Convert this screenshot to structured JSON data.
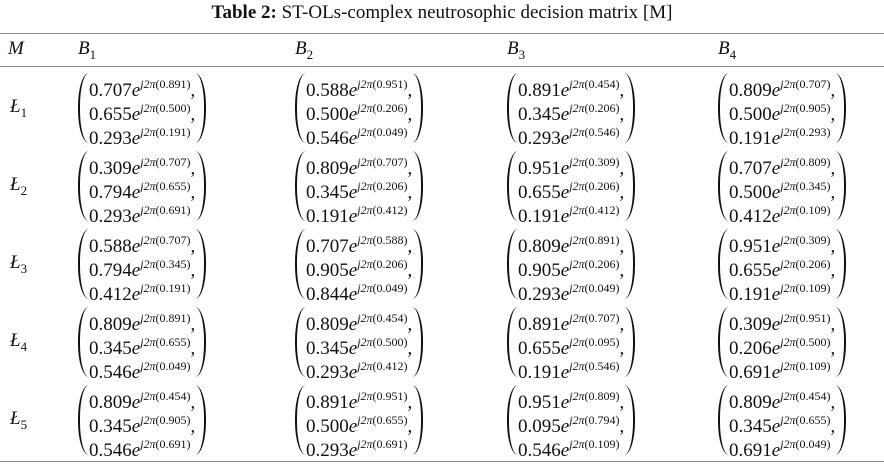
{
  "caption": {
    "label": "Table 2:",
    "text": "ST-OLs-complex neutrosophic decision matrix [M]"
  },
  "notation": {
    "base": "e",
    "exp_prefix": "j2π",
    "separator": ","
  },
  "header": [
    {
      "base": "M"
    },
    {
      "base": "B",
      "sub": "1"
    },
    {
      "base": "B",
      "sub": "2"
    },
    {
      "base": "B",
      "sub": "3"
    },
    {
      "base": "B",
      "sub": "4"
    }
  ],
  "rows": [
    {
      "label": {
        "base": "Ł",
        "sub": "1"
      },
      "cells": [
        [
          [
            "0.707",
            "(0.891)"
          ],
          [
            "0.655",
            "(0.500)"
          ],
          [
            "0.293",
            "(0.191)"
          ]
        ],
        [
          [
            "0.588",
            "(0.951)"
          ],
          [
            "0.500",
            "(0.206)"
          ],
          [
            "0.546",
            "(0.049)"
          ]
        ],
        [
          [
            "0.891",
            "(0.454)"
          ],
          [
            "0.345",
            "(0.206)"
          ],
          [
            "0.293",
            "(0.546)"
          ]
        ],
        [
          [
            "0.809",
            "(0.707)"
          ],
          [
            "0.500",
            "(0.905)"
          ],
          [
            "0.191",
            "(0.293)"
          ]
        ]
      ]
    },
    {
      "label": {
        "base": "Ł",
        "sub": "2"
      },
      "cells": [
        [
          [
            "0.309",
            "(0.707)"
          ],
          [
            "0.794",
            "(0.655)"
          ],
          [
            "0.293",
            "(0.691)"
          ]
        ],
        [
          [
            "0.809",
            "(0.707)"
          ],
          [
            "0.345",
            "(0.206)"
          ],
          [
            "0.191",
            "(0.412)"
          ]
        ],
        [
          [
            "0.951",
            "(0.309)"
          ],
          [
            "0.655",
            "(0.206)"
          ],
          [
            "0.191",
            "(0.412)"
          ]
        ],
        [
          [
            "0.707",
            "(0.809)"
          ],
          [
            "0.500",
            "(0.345)"
          ],
          [
            "0.412",
            "(0.109)"
          ]
        ]
      ]
    },
    {
      "label": {
        "base": "Ł",
        "sub": "3"
      },
      "cells": [
        [
          [
            "0.588",
            "(0.707)"
          ],
          [
            "0.794",
            "(0.345)"
          ],
          [
            "0.412",
            "(0.191)"
          ]
        ],
        [
          [
            "0.707",
            "(0.588)"
          ],
          [
            "0.905",
            "(0.206)"
          ],
          [
            "0.844",
            "(0.049)"
          ]
        ],
        [
          [
            "0.809",
            "(0.891)"
          ],
          [
            "0.905",
            "(0.206)"
          ],
          [
            "0.293",
            "(0.049)"
          ]
        ],
        [
          [
            "0.951",
            "(0.309)"
          ],
          [
            "0.655",
            "(0.206)"
          ],
          [
            "0.191",
            "(0.109)"
          ]
        ]
      ]
    },
    {
      "label": {
        "base": "Ł",
        "sub": "4"
      },
      "cells": [
        [
          [
            "0.809",
            "(0.891)"
          ],
          [
            "0.345",
            "(0.655)"
          ],
          [
            "0.546",
            "(0.049)"
          ]
        ],
        [
          [
            "0.809",
            "(0.454)"
          ],
          [
            "0.345",
            "(0.500)"
          ],
          [
            "0.293",
            "(0.412)"
          ]
        ],
        [
          [
            "0.891",
            "(0.707)"
          ],
          [
            "0.655",
            "(0.095)"
          ],
          [
            "0.191",
            "(0.546)"
          ]
        ],
        [
          [
            "0.309",
            "(0.951)"
          ],
          [
            "0.206",
            "(0.500)"
          ],
          [
            "0.691",
            "(0.109)"
          ]
        ]
      ]
    },
    {
      "label": {
        "base": "Ł",
        "sub": "5"
      },
      "cells": [
        [
          [
            "0.809",
            "(0.454)"
          ],
          [
            "0.345",
            "(0.905)"
          ],
          [
            "0.546",
            "(0.691)"
          ]
        ],
        [
          [
            "0.891",
            "(0.951)"
          ],
          [
            "0.500",
            "(0.655)"
          ],
          [
            "0.293",
            "(0.691)"
          ]
        ],
        [
          [
            "0.951",
            "(0.809)"
          ],
          [
            "0.095",
            "(0.794)"
          ],
          [
            "0.546",
            "(0.109)"
          ]
        ],
        [
          [
            "0.809",
            "(0.454)"
          ],
          [
            "0.345",
            "(0.655)"
          ],
          [
            "0.691",
            "(0.049)"
          ]
        ]
      ]
    }
  ]
}
